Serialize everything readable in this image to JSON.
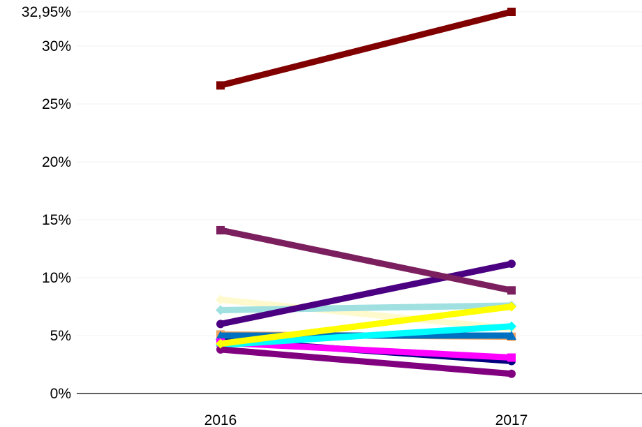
{
  "chart_data": {
    "type": "line",
    "title": "",
    "xlabel": "",
    "ylabel": "",
    "categories": [
      "2016",
      "2017"
    ],
    "ylim": [
      0,
      32.95
    ],
    "y_ticks": [
      {
        "value": 0,
        "label": "0%"
      },
      {
        "value": 5,
        "label": "5%"
      },
      {
        "value": 10,
        "label": "10%"
      },
      {
        "value": 15,
        "label": "15%"
      },
      {
        "value": 20,
        "label": "20%"
      },
      {
        "value": 25,
        "label": "25%"
      },
      {
        "value": 30,
        "label": "30%"
      },
      {
        "value": 32.95,
        "label": "32,95%"
      }
    ],
    "grid": true,
    "legend": "none",
    "series": [
      {
        "color": "#fffacd",
        "marker": "diamond",
        "values": [
          8.1,
          5.6
        ]
      },
      {
        "color": "#f4a460",
        "marker": "square",
        "values": [
          5.1,
          4.9
        ]
      },
      {
        "color": "#000080",
        "marker": "circle",
        "values": [
          4.6,
          2.8
        ]
      },
      {
        "color": "#0070c0",
        "marker": "triangle",
        "values": [
          5.0,
          5.0
        ]
      },
      {
        "color": "#a0e0e0",
        "marker": "diamond",
        "values": [
          7.2,
          7.6
        ]
      },
      {
        "color": "#ff00ff",
        "marker": "square",
        "values": [
          4.4,
          3.1
        ]
      },
      {
        "color": "#00ffff",
        "marker": "diamond",
        "values": [
          4.2,
          5.8
        ]
      },
      {
        "color": "#800080",
        "marker": "circle",
        "values": [
          3.8,
          1.7
        ]
      },
      {
        "color": "#ffff00",
        "marker": "diamond",
        "values": [
          4.3,
          7.5
        ]
      },
      {
        "color": "#4b0082",
        "marker": "circle",
        "values": [
          6.0,
          11.2
        ]
      },
      {
        "color": "#7b1f5e",
        "marker": "square",
        "values": [
          14.1,
          8.9
        ]
      },
      {
        "color": "#800000",
        "marker": "square",
        "values": [
          26.6,
          32.95
        ]
      }
    ]
  }
}
